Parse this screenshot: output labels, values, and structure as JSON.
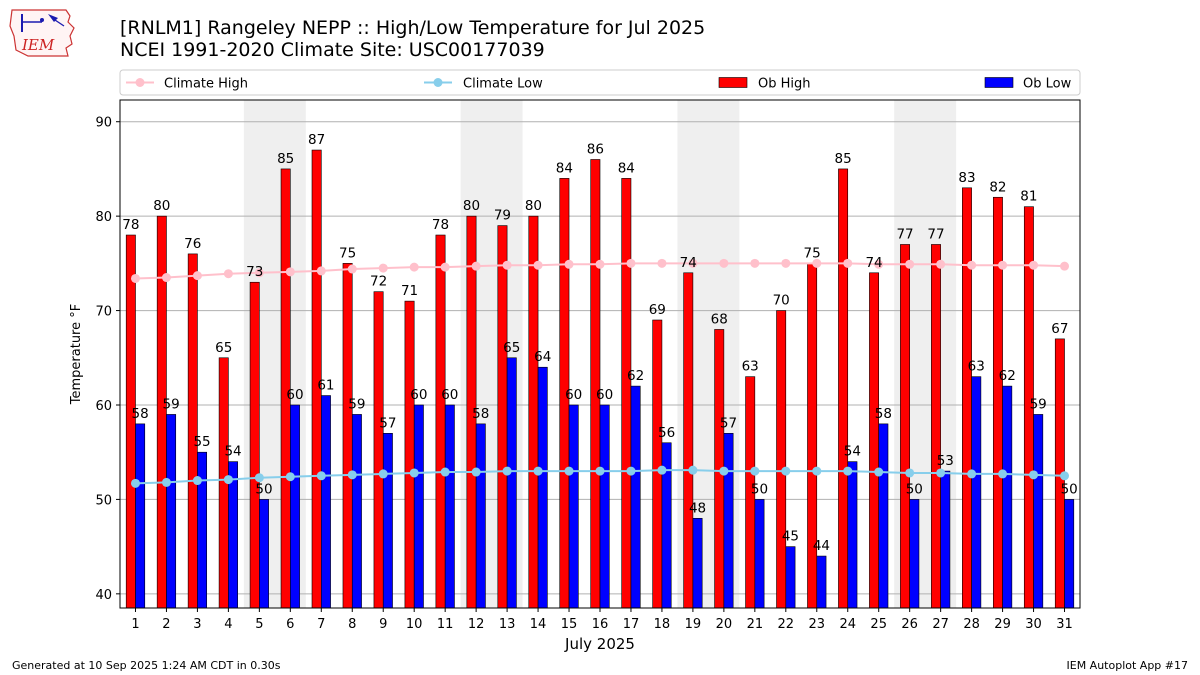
{
  "header": {
    "title_line1": "[RNLM1] Rangeley NEPP :: High/Low Temperature for Jul 2025",
    "title_line2": "NCEI 1991-2020 Climate Site: USC00177039",
    "logo_text": "IEM"
  },
  "footer": {
    "generated": "Generated at 10 Sep 2025 1:24 AM CDT in 0.30s",
    "app": "IEM Autoplot App #17"
  },
  "colors": {
    "ob_high": "#ff0000",
    "ob_low": "#0000ff",
    "climate_high": "#ffc0cb",
    "climate_low": "#87ceeb",
    "weekend_shade": "#efefef"
  },
  "chart_data": {
    "type": "bar",
    "xlabel": "July 2025",
    "ylabel": "Temperature °F",
    "ylim": [
      38.5,
      92.3
    ],
    "yticks": [
      40,
      50,
      60,
      70,
      80,
      90
    ],
    "grid": true,
    "legend_position": "top",
    "categories": [
      "1",
      "2",
      "3",
      "4",
      "5",
      "6",
      "7",
      "8",
      "9",
      "10",
      "11",
      "12",
      "13",
      "14",
      "15",
      "16",
      "17",
      "18",
      "19",
      "20",
      "21",
      "22",
      "23",
      "24",
      "25",
      "26",
      "27",
      "28",
      "29",
      "30",
      "31"
    ],
    "shaded_day_ranges": [
      [
        5,
        6
      ],
      [
        12,
        13
      ],
      [
        19,
        20
      ],
      [
        26,
        27
      ]
    ],
    "series": [
      {
        "name": "Climate High",
        "type": "line",
        "values": [
          73.4,
          73.5,
          73.7,
          73.9,
          74.0,
          74.1,
          74.2,
          74.4,
          74.5,
          74.6,
          74.6,
          74.7,
          74.8,
          74.8,
          74.9,
          74.9,
          75.0,
          75.0,
          75.0,
          75.0,
          75.0,
          75.0,
          75.0,
          75.0,
          74.9,
          74.9,
          74.9,
          74.8,
          74.8,
          74.8,
          74.7
        ]
      },
      {
        "name": "Climate Low",
        "type": "line",
        "values": [
          51.7,
          51.8,
          52.0,
          52.1,
          52.3,
          52.4,
          52.5,
          52.6,
          52.7,
          52.8,
          52.9,
          52.9,
          53.0,
          53.0,
          53.0,
          53.0,
          53.0,
          53.1,
          53.1,
          53.0,
          53.0,
          53.0,
          53.0,
          53.0,
          52.9,
          52.8,
          52.8,
          52.7,
          52.7,
          52.6,
          52.5
        ]
      },
      {
        "name": "Ob High",
        "type": "bar",
        "values": [
          78,
          80,
          76,
          65,
          73,
          85,
          87,
          75,
          72,
          71,
          78,
          80,
          79,
          80,
          84,
          86,
          84,
          69,
          74,
          68,
          63,
          70,
          75,
          85,
          74,
          77,
          77,
          83,
          82,
          81,
          67
        ]
      },
      {
        "name": "Ob Low",
        "type": "bar",
        "values": [
          58,
          59,
          55,
          54,
          50,
          60,
          61,
          59,
          57,
          60,
          60,
          58,
          65,
          64,
          60,
          60,
          62,
          56,
          48,
          57,
          50,
          45,
          44,
          54,
          58,
          50,
          53,
          63,
          62,
          59,
          50
        ]
      }
    ]
  }
}
